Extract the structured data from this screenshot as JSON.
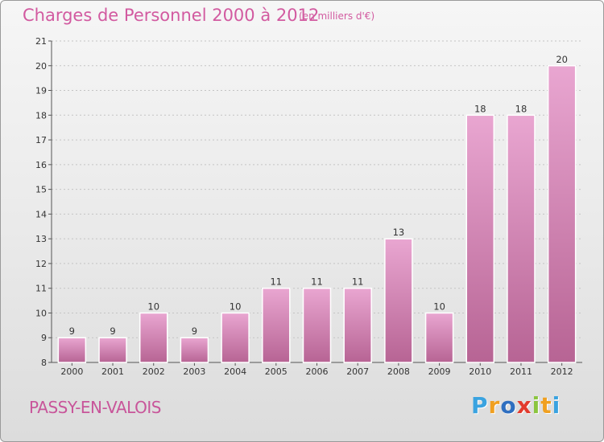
{
  "header": {
    "title": "Charges de Personnel 2000 à 2012",
    "subtitle": "(en milliers d'€)"
  },
  "footer": {
    "commune": "PASSY-EN-VALOIS",
    "logo_letters": [
      "P",
      "r",
      "o",
      "x",
      "i",
      "t",
      "i"
    ],
    "logo_colors": [
      "#3aa3e0",
      "#f0a020",
      "#2f6fc0",
      "#e23b2e",
      "#8bc53f",
      "#f0a020",
      "#3aa3e0"
    ]
  },
  "colors": {
    "bar_top": "#e9a6d1",
    "bar_bottom": "#b76494",
    "title": "#d25aa0"
  },
  "chart_data": {
    "type": "bar",
    "title": "Charges de Personnel 2000 à 2012",
    "subtitle": "(en milliers d'€)",
    "xlabel": "",
    "ylabel": "",
    "categories": [
      "2000",
      "2001",
      "2002",
      "2003",
      "2004",
      "2005",
      "2006",
      "2007",
      "2008",
      "2009",
      "2010",
      "2011",
      "2012"
    ],
    "values": [
      9,
      9,
      10,
      9,
      10,
      11,
      11,
      11,
      13,
      10,
      18,
      18,
      20
    ],
    "value_labels": [
      "9",
      "9",
      "10",
      "9",
      "10",
      "11",
      "11",
      "11",
      "13",
      "10",
      "18",
      "18",
      "20"
    ],
    "ylim": [
      8,
      21
    ],
    "yticks": [
      "8",
      "9",
      "10",
      "11",
      "12",
      "13",
      "14",
      "15",
      "16",
      "17",
      "18",
      "19",
      "20",
      "21"
    ],
    "grid": "horizontal dashed"
  }
}
